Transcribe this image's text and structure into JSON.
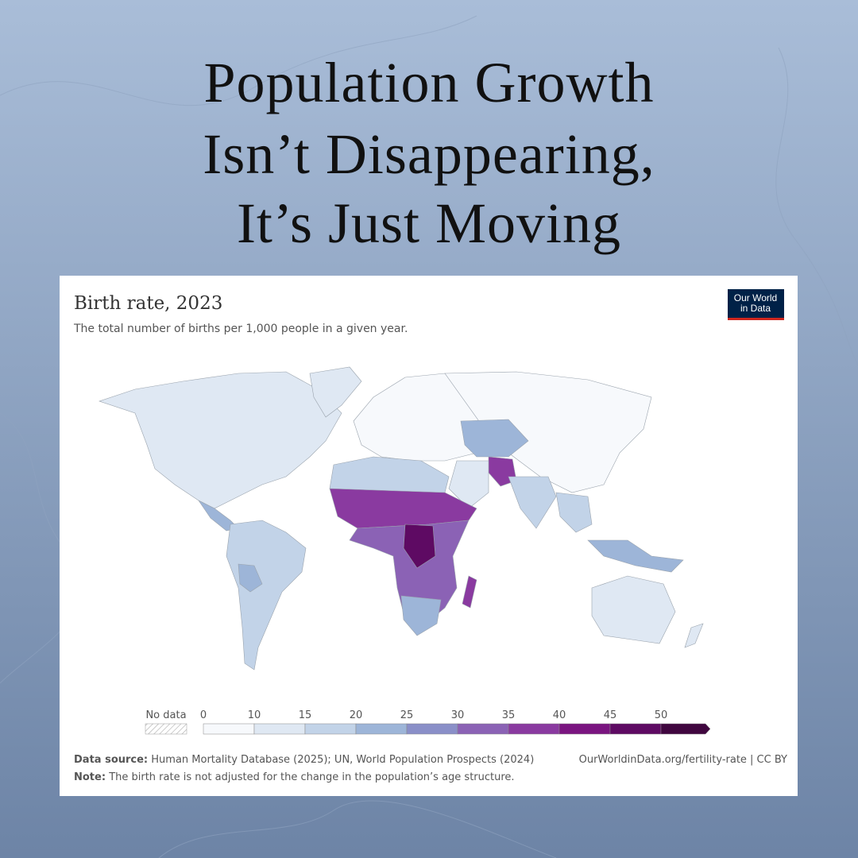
{
  "headline": [
    "Population Growth",
    "Isn’t Disappearing,",
    "It’s Just Moving"
  ],
  "card": {
    "title": "Birth rate, 2023",
    "subtitle": "The total number of births per 1,000 people in a given year.",
    "logo": [
      "Our World",
      "in Data"
    ],
    "legend": {
      "no_data": "No data",
      "ticks": [
        0,
        10,
        15,
        20,
        25,
        30,
        35,
        40,
        45,
        50
      ],
      "colors": [
        "#f7f9fc",
        "#dfe8f3",
        "#c2d3e8",
        "#9db5d8",
        "#8a8fc8",
        "#8b62b5",
        "#8a3aa0",
        "#7a1480",
        "#5e0a63",
        "#40063f"
      ]
    },
    "footer": {
      "source_label": "Data source:",
      "source": "Human Mortality Database (2025); UN, World Population Prospects (2024)",
      "note_label": "Note:",
      "note": "The birth rate is not adjusted for the change in the population’s age structure.",
      "link": "OurWorldinData.org/fertility-rate | CC BY"
    }
  }
}
